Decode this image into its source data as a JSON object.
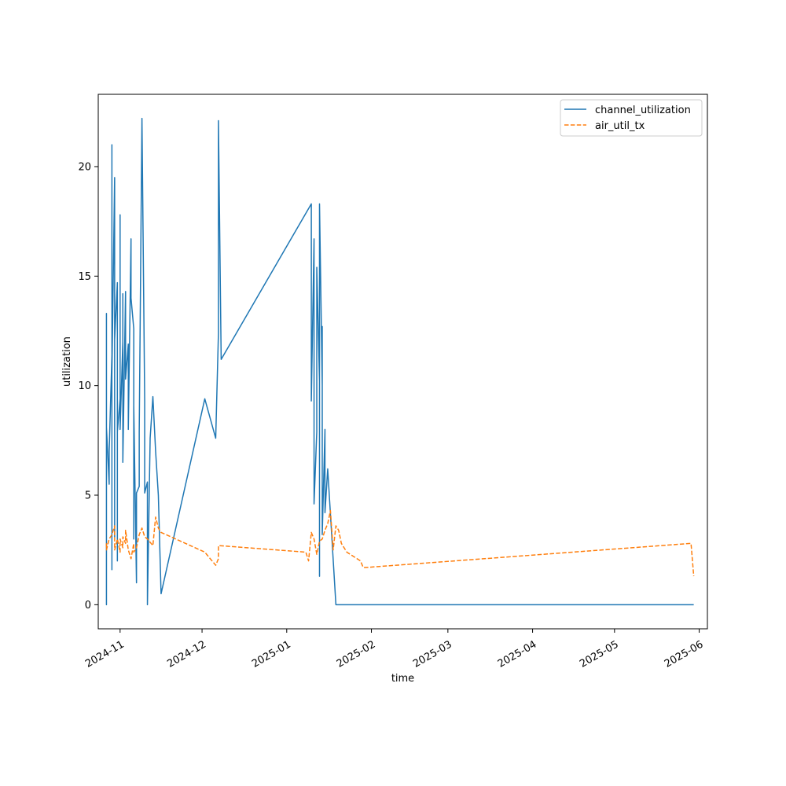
{
  "chart_data": {
    "type": "line",
    "xlabel": "time",
    "ylabel": "utilization",
    "x_axis_type": "date",
    "xlim": [
      "2024-10-24",
      "2025-06-04"
    ],
    "ylim": [
      -1.1,
      23.3
    ],
    "x_ticks": [
      "2024-11-01",
      "2024-12-01",
      "2025-01-01",
      "2025-02-01",
      "2025-03-01",
      "2025-04-01",
      "2025-05-01",
      "2025-06-01"
    ],
    "x_tick_labels": [
      "2024-11",
      "2024-12",
      "2025-01",
      "2025-02",
      "2025-03",
      "2025-04",
      "2025-05",
      "2025-06"
    ],
    "y_ticks": [
      0,
      5,
      10,
      15,
      20
    ],
    "y_tick_labels": [
      "0",
      "5",
      "10",
      "15",
      "20"
    ],
    "grid": false,
    "legend_position": "top-right",
    "series": [
      {
        "name": "channel_utilization",
        "color": "#1f77b4",
        "dash": "solid",
        "x": [
          "2024-10-27",
          "2024-10-27",
          "2024-10-27",
          "2024-10-27",
          "2024-10-28",
          "2024-10-28",
          "2024-10-28",
          "2024-10-29",
          "2024-10-29",
          "2024-10-29",
          "2024-10-29",
          "2024-10-30",
          "2024-10-30",
          "2024-10-30",
          "2024-10-30",
          "2024-10-31",
          "2024-10-31",
          "2024-10-31",
          "2024-11-01",
          "2024-11-01",
          "2024-11-01",
          "2024-11-02",
          "2024-11-02",
          "2024-11-02",
          "2024-11-03",
          "2024-11-03",
          "2024-11-04",
          "2024-11-04",
          "2024-11-05",
          "2024-11-05",
          "2024-11-05",
          "2024-11-06",
          "2024-11-06",
          "2024-11-06",
          "2024-11-07",
          "2024-11-07",
          "2024-11-07",
          "2024-11-07",
          "2024-11-08",
          "2024-11-08",
          "2024-11-09",
          "2024-11-10",
          "2024-11-10",
          "2024-11-11",
          "2024-11-11",
          "2024-11-12",
          "2024-11-13",
          "2024-11-14",
          "2024-11-15",
          "2024-11-16",
          "2024-12-02",
          "2024-12-06",
          "2024-12-07",
          "2024-12-07",
          "2024-12-08",
          "2025-01-10",
          "2025-01-10",
          "2025-01-11",
          "2025-01-11",
          "2025-01-12",
          "2025-01-12",
          "2025-01-12",
          "2025-01-13",
          "2025-01-13",
          "2025-01-13",
          "2025-01-13",
          "2025-01-14",
          "2025-01-14",
          "2025-01-14",
          "2025-01-15",
          "2025-01-15",
          "2025-01-16",
          "2025-01-19",
          "2025-01-20",
          "2025-01-20",
          "2025-01-21",
          "2025-01-21",
          "2025-01-21",
          "2025-01-22",
          "2025-01-22",
          "2025-01-30",
          "2025-01-30",
          "2025-01-31",
          "2025-01-31",
          "2025-05-29",
          "2025-05-30"
        ],
        "y": [
          2.6,
          13.3,
          0.0,
          8.1,
          5.5,
          6.2,
          7.0,
          11.4,
          1.6,
          21.0,
          10.5,
          19.5,
          3.1,
          9.3,
          12.1,
          14.7,
          2.0,
          7.9,
          9.4,
          17.8,
          8.0,
          12.0,
          14.2,
          6.5,
          14.3,
          10.3,
          11.9,
          8.0,
          16.7,
          15.1,
          14.0,
          12.6,
          3.0,
          9.1,
          1.0,
          4.5,
          4.8,
          5.1,
          5.4,
          7.9,
          22.2,
          9.3,
          5.1,
          5.6,
          0.0,
          7.6,
          9.5,
          7.0,
          5.0,
          0.5,
          9.4,
          7.6,
          12.4,
          22.1,
          11.2,
          18.3,
          9.3,
          16.7,
          4.6,
          7.9,
          9.4,
          15.4,
          10.2,
          13.7,
          1.3,
          18.3,
          10.0,
          12.7,
          3.2,
          8.0,
          4.2,
          6.2,
          0.0,
          0.0,
          0.0,
          0.0,
          0.0,
          0.0,
          0.0,
          0.0,
          0.0,
          0.0,
          0.0,
          0.0,
          0.0,
          0.0
        ]
      },
      {
        "name": "air_util_tx",
        "color": "#ff7f0e",
        "dash": "dashed",
        "x": [
          "2024-10-27",
          "2024-10-27",
          "2024-10-28",
          "2024-10-29",
          "2024-10-30",
          "2024-10-30",
          "2024-10-31",
          "2024-11-01",
          "2024-11-01",
          "2024-11-02",
          "2024-11-02",
          "2024-11-03",
          "2024-11-03",
          "2024-11-04",
          "2024-11-05",
          "2024-11-06",
          "2024-11-06",
          "2024-11-07",
          "2024-11-08",
          "2024-11-09",
          "2024-11-10",
          "2024-11-11",
          "2024-11-13",
          "2024-11-14",
          "2024-11-15",
          "2024-11-16",
          "2024-12-02",
          "2024-12-06",
          "2024-12-07",
          "2024-12-07",
          "2025-01-08",
          "2025-01-09",
          "2025-01-10",
          "2025-01-11",
          "2025-01-12",
          "2025-01-13",
          "2025-01-14",
          "2025-01-15",
          "2025-01-16",
          "2025-01-17",
          "2025-01-18",
          "2025-01-19",
          "2025-01-20",
          "2025-01-21",
          "2025-01-22",
          "2025-01-23",
          "2025-01-28",
          "2025-01-29",
          "2025-01-30",
          "2025-05-29",
          "2025-05-30"
        ],
        "y": [
          2.8,
          2.5,
          3.0,
          3.2,
          3.6,
          2.5,
          3.0,
          2.4,
          3.0,
          2.6,
          3.1,
          2.8,
          3.4,
          2.5,
          2.1,
          2.8,
          2.4,
          2.6,
          3.2,
          3.5,
          3.1,
          3.0,
          2.7,
          4.0,
          3.5,
          3.3,
          2.4,
          1.8,
          2.1,
          2.7,
          2.4,
          2.0,
          3.3,
          3.0,
          2.3,
          2.9,
          3.0,
          3.4,
          3.7,
          4.3,
          2.5,
          3.6,
          3.4,
          2.8,
          2.6,
          2.4,
          2.0,
          1.7,
          1.7,
          2.8,
          1.3
        ]
      }
    ]
  }
}
